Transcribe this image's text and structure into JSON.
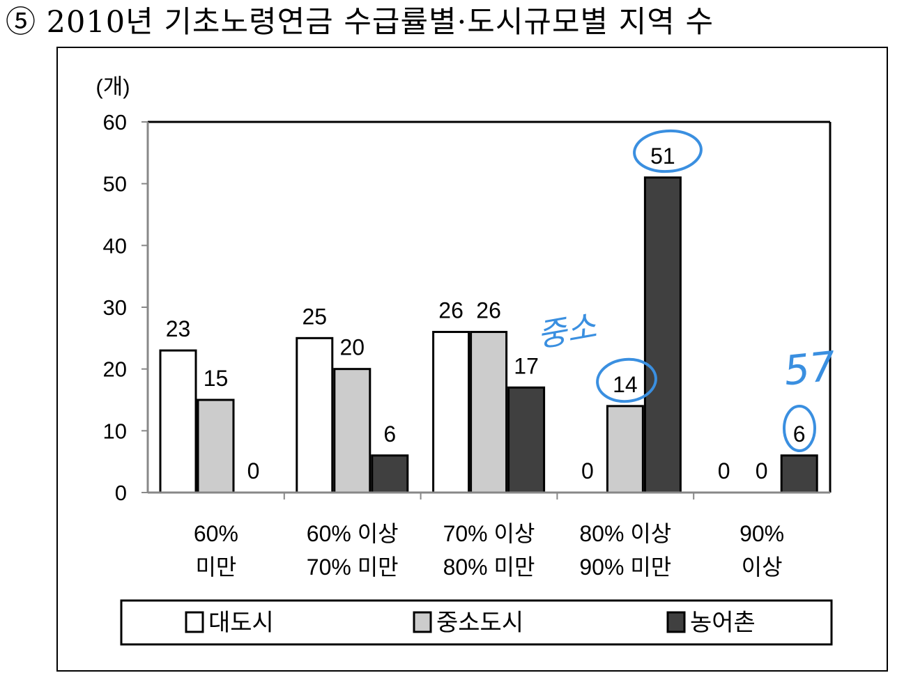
{
  "heading": {
    "marker": "⑤",
    "title": "2010년 기초노령연금 수급률별·도시규모별 지역 수"
  },
  "chart_data": {
    "type": "bar",
    "unit_label": "(개)",
    "categories": [
      [
        "60%",
        "미만"
      ],
      [
        "60% 이상",
        "70% 미만"
      ],
      [
        "70% 이상",
        "80% 미만"
      ],
      [
        "80% 이상",
        "90% 미만"
      ],
      [
        "90%",
        "이상"
      ]
    ],
    "series": [
      {
        "name": "대도시",
        "values": [
          23,
          25,
          26,
          0,
          0
        ],
        "color": "#ffffff"
      },
      {
        "name": "중소도시",
        "values": [
          15,
          20,
          26,
          14,
          0
        ],
        "color": "#cccccc"
      },
      {
        "name": "농어촌",
        "values": [
          0,
          6,
          17,
          51,
          6
        ],
        "color": "#404040"
      }
    ],
    "ylim": [
      0,
      60
    ],
    "yticks": [
      "0",
      "10",
      "20",
      "30",
      "40",
      "50",
      "60"
    ],
    "grid": false,
    "legend_position": "bottom"
  },
  "annotations": {
    "color": "#3a8fe0",
    "note_text_1": "중소",
    "note_text_2": "57"
  }
}
